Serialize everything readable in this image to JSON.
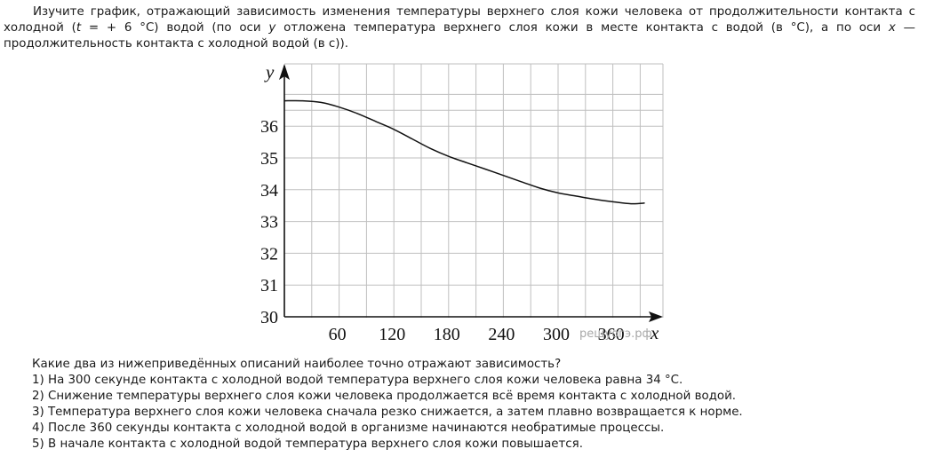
{
  "intro": {
    "p1": "Изучите график, отражающий зависимость изменения температуры верхнего слоя кожи человека от продолжительности контакта с холодной (",
    "var_t": "t",
    "p2": " = + 6 °C) водой (по оси ",
    "var_y": "y",
    "p3": " отложена температура верхнего слоя кожи в месте контакта с водой (в °C), а по оси ",
    "var_x": "x",
    "p4": " — продолжительность контакта с холодной водой (в с))."
  },
  "chart_data": {
    "type": "line",
    "title": "",
    "xlabel": "x",
    "ylabel": "y",
    "xlim": [
      0,
      400
    ],
    "ylim": [
      30,
      37.5
    ],
    "grid": true,
    "x_ticks": [
      60,
      120,
      180,
      240,
      300,
      360
    ],
    "y_ticks": [
      30,
      31,
      32,
      33,
      34,
      35,
      36
    ],
    "watermark": "рещуогэ.рф",
    "series": [
      {
        "x": [
          0,
          20,
          40,
          60,
          80,
          100,
          120,
          140,
          160,
          180,
          200,
          220,
          240,
          260,
          280,
          300,
          320,
          340,
          360,
          380,
          395
        ],
        "y": [
          36.8,
          36.8,
          36.75,
          36.6,
          36.4,
          36.15,
          35.9,
          35.6,
          35.3,
          35.05,
          34.85,
          34.65,
          34.45,
          34.25,
          34.05,
          33.9,
          33.8,
          33.7,
          33.62,
          33.56,
          33.58
        ]
      }
    ]
  },
  "question": {
    "prompt": "Какие два из нижеприведённых описаний наиболее точно отражают зависимость?",
    "options": [
      "1) На 300 секунде контакта с холодной водой температура верхнего слоя кожи человека равна 34 °C.",
      "2) Снижение температуры верхнего слоя кожи человека продолжается всё время контакта с холодной водой.",
      "3) Температура верхнего слоя кожи человека сначала резко снижается, а затем плавно возвращается к норме.",
      "4) После 360 секунды контакта с холодной водой в организме начинаются необратимые процессы.",
      "5) В начале контакта с холодной водой температура верхнего слоя кожи повышается."
    ]
  }
}
